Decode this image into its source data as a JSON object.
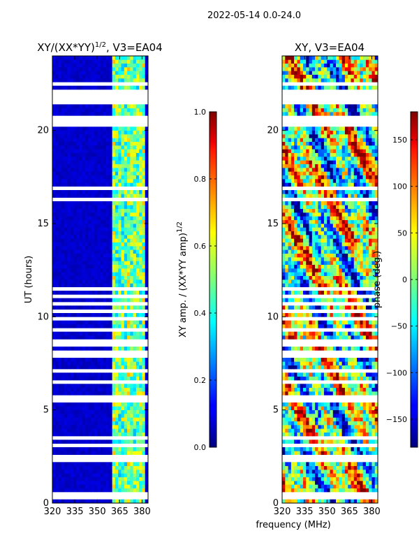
{
  "figure": {
    "suptitle": "2022-05-14 0.0-24.0",
    "shared_xlabel": "frequency (MHz)"
  },
  "chart_data": [
    {
      "type": "heatmap",
      "title": "XY/(XX*YY)",
      "title_exponent": "1/2",
      "title_suffix": ", V3=EA04",
      "xlabel": "frequency (MHz)",
      "ylabel": "UT (hours)",
      "xlim": [
        320,
        384
      ],
      "ylim": [
        0,
        24
      ],
      "xticks": [
        320,
        335,
        350,
        365,
        380
      ],
      "yticks": [
        0,
        5,
        10,
        15,
        20
      ],
      "colorbar": {
        "label": "XY amp. / (XX*YY amp)",
        "label_exponent": "1/2",
        "range": [
          0.0,
          1.0
        ],
        "ticks": [
          "0.0",
          "0.2",
          "0.4",
          "0.6",
          "0.8",
          "1.0"
        ],
        "tick_values": [
          0.0,
          0.2,
          0.4,
          0.6,
          0.8,
          1.0
        ],
        "colormap": "jet"
      },
      "bright_band_mhz": [
        361,
        382
      ],
      "background_level": 0.05
    },
    {
      "type": "heatmap",
      "title": "XY, V3=EA04",
      "xlabel": "frequency (MHz)",
      "ylabel": "",
      "xlim": [
        320,
        384
      ],
      "ylim": [
        0,
        24
      ],
      "xticks": [
        320,
        335,
        350,
        365,
        380
      ],
      "yticks": [
        0,
        5,
        10,
        15,
        20
      ],
      "colorbar": {
        "label": "phase (deg.)",
        "range": [
          -180,
          180
        ],
        "ticks": [
          "150",
          "100",
          "50",
          "0",
          "−50",
          "−100",
          "−150"
        ],
        "tick_values": [
          150,
          100,
          50,
          0,
          -50,
          -100,
          -150
        ],
        "colormap": "jet"
      }
    }
  ]
}
